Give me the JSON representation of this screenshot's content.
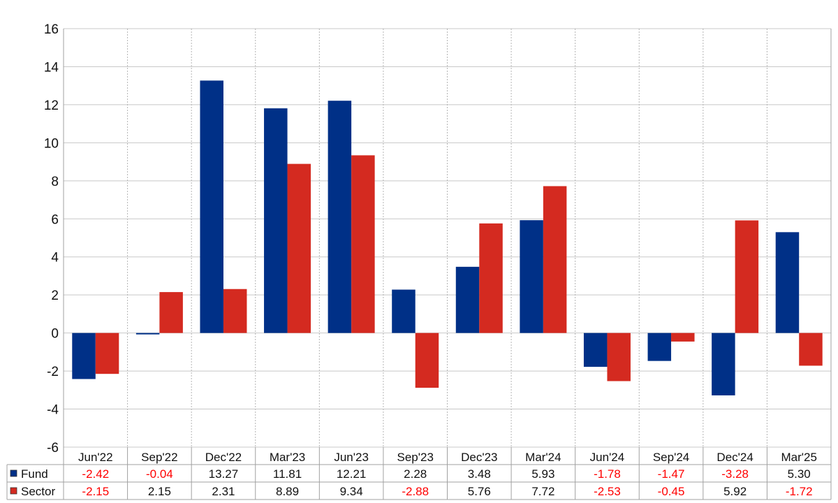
{
  "chart_data": {
    "type": "bar",
    "categories": [
      "Jun'22",
      "Sep'22",
      "Dec'22",
      "Mar'23",
      "Jun'23",
      "Sep'23",
      "Dec'23",
      "Mar'24",
      "Jun'24",
      "Sep'24",
      "Dec'24",
      "Mar'25"
    ],
    "series": [
      {
        "name": "Fund",
        "color": "#003087",
        "values": [
          -2.42,
          -0.04,
          13.27,
          11.81,
          12.21,
          2.28,
          3.48,
          5.93,
          -1.78,
          -1.47,
          -3.28,
          5.3
        ],
        "labels": [
          "-2.42",
          "-0.04",
          "13.27",
          "11.81",
          "12.21",
          "2.28",
          "3.48",
          "5.93",
          "-1.78",
          "-1.47",
          "-3.28",
          "5.30"
        ]
      },
      {
        "name": "Sector",
        "color": "#d42a20",
        "values": [
          -2.15,
          2.15,
          2.31,
          8.89,
          9.34,
          -2.88,
          5.76,
          7.72,
          -2.53,
          -0.45,
          5.92,
          -1.72
        ],
        "labels": [
          "-2.15",
          "2.15",
          "2.31",
          "8.89",
          "9.34",
          "-2.88",
          "5.76",
          "7.72",
          "-2.53",
          "-0.45",
          "5.92",
          "-1.72"
        ]
      }
    ],
    "ylim": [
      -6,
      16
    ],
    "yticks": [
      "16",
      "14",
      "12",
      "10",
      "8",
      "6",
      "4",
      "2",
      "0",
      "-2",
      "-4",
      "-6"
    ],
    "grid": true,
    "legend": "data table below chart",
    "negative_label_color": "#ff0000",
    "title": "",
    "xlabel": "",
    "ylabel": ""
  }
}
